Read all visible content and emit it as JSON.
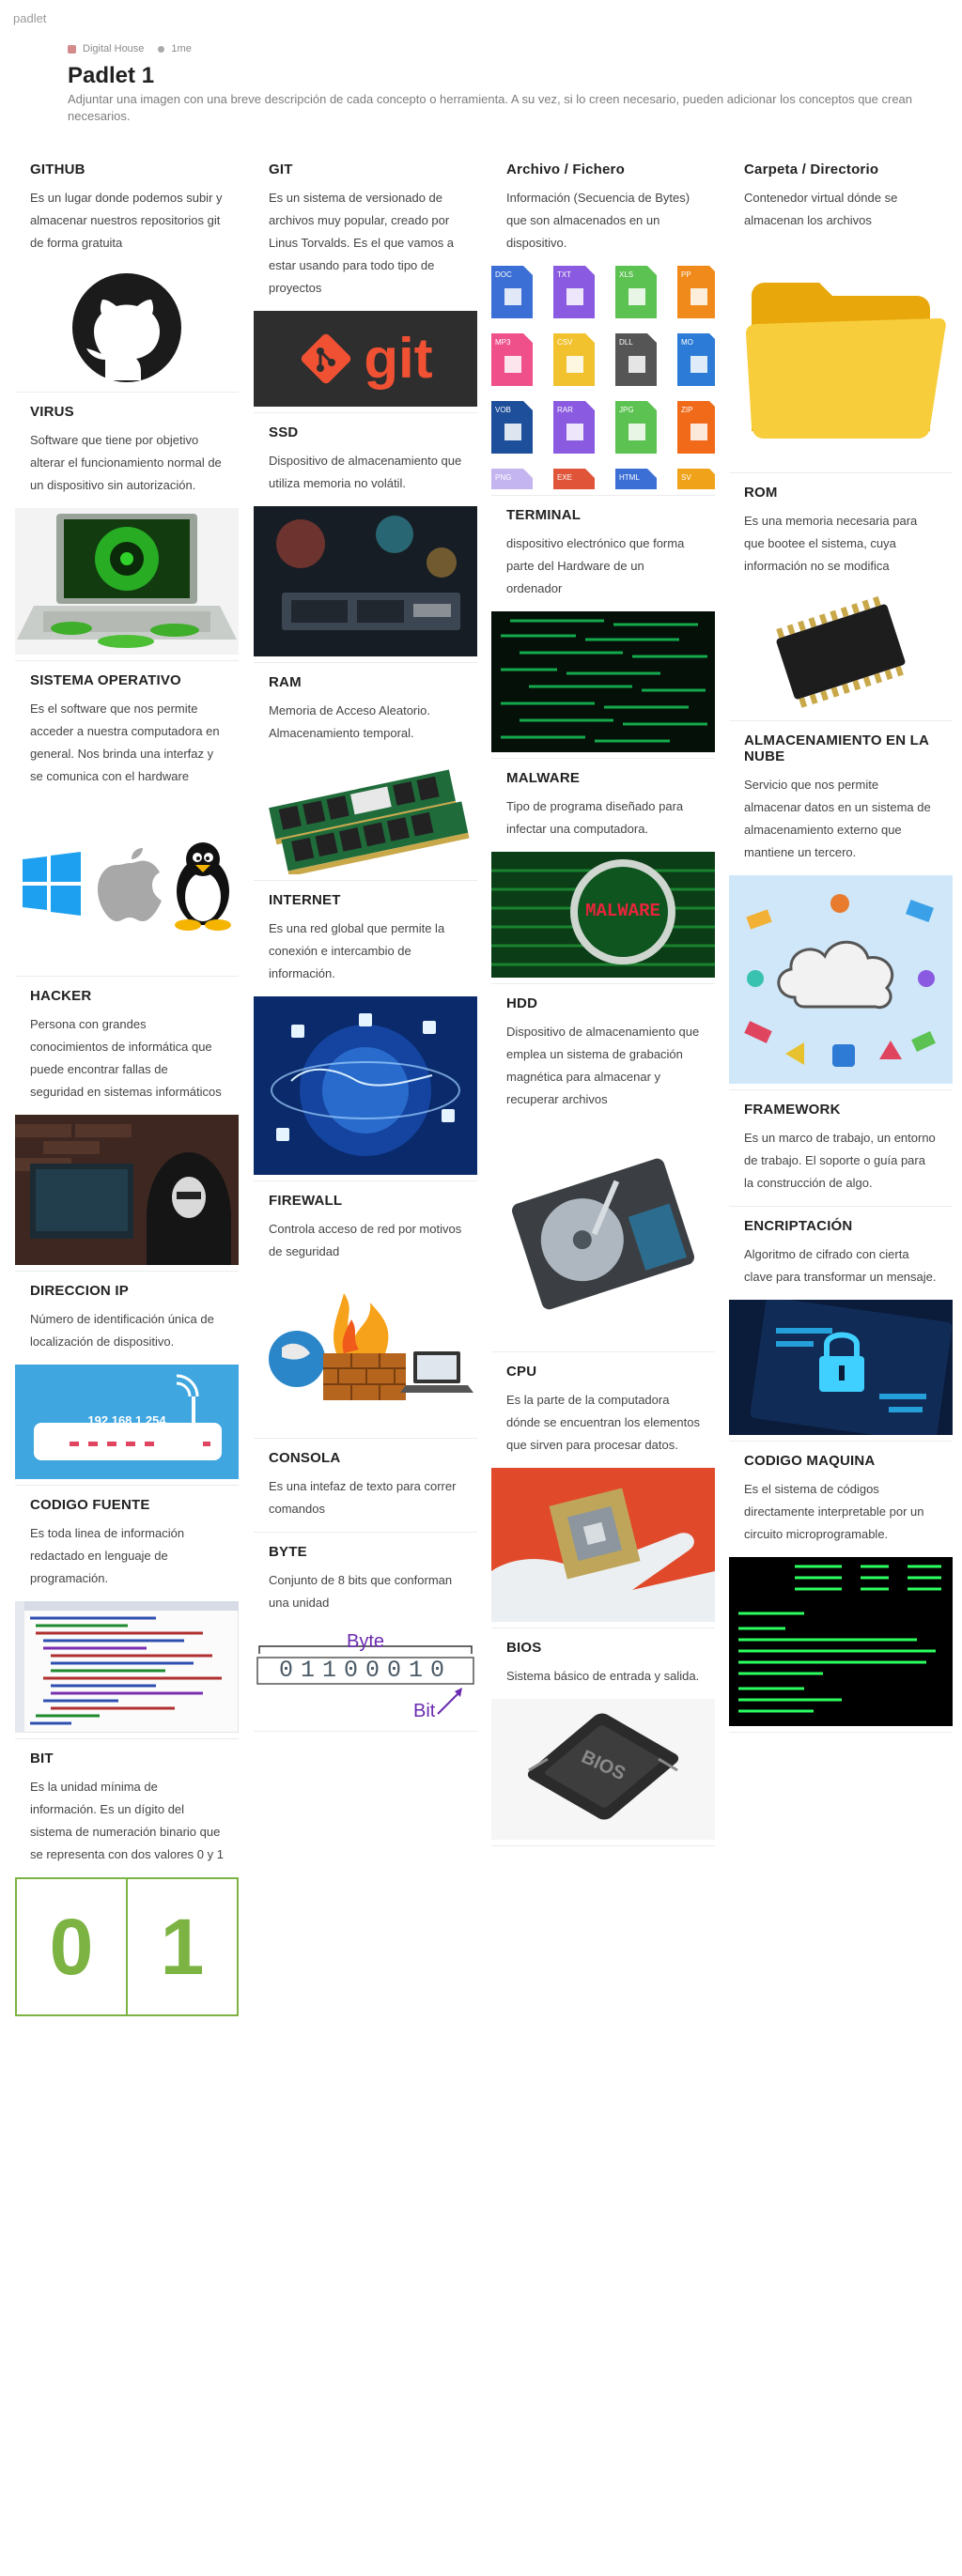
{
  "app_name": "padlet",
  "header": {
    "owner": "Digital House",
    "time": "1me",
    "title": "Padlet 1",
    "description": "Adjuntar una imagen con una breve descripción de cada concepto o herramienta. A su vez, si lo creen necesario, pueden adicionar los conceptos que crean necesarios."
  },
  "cards": {
    "github": {
      "title": "GITHUB",
      "text": "Es un lugar donde podemos subir y almacenar nuestros repositorios git de forma gratuita"
    },
    "virus": {
      "title": "VIRUS",
      "text": "Software que tiene por objetivo alterar el funcionamiento normal de un dispositivo sin autorización."
    },
    "so": {
      "title": "SISTEMA OPERATIVO",
      "text": "Es el software que nos permite acceder a nuestra computadora en general. Nos brinda una interfaz y se comunica con el hardware"
    },
    "hacker": {
      "title": "HACKER",
      "text": "Persona con grandes conocimientos de informática que puede encontrar fallas de seguridad en sistemas informáticos"
    },
    "ip": {
      "title": "DIRECCION IP",
      "text": "Número de identificación única de localización de dispositivo.",
      "img_text": "192.168.1.254"
    },
    "fuente": {
      "title": "CODIGO FUENTE",
      "text": "Es toda linea de información redactado en lenguaje de programación."
    },
    "bit": {
      "title": "BIT",
      "text": "Es la unidad mínima de información. Es un dígito del sistema de numeración binario que se representa con dos valores 0 y 1",
      "img_left": "0",
      "img_right": "1"
    },
    "git": {
      "title": "GIT",
      "text": "Es un sistema de versionado de archivos muy popular, creado por Linus Torvalds. Es el que vamos a estar usando para todo tipo de proyectos",
      "img_text": "git"
    },
    "ssd": {
      "title": "SSD",
      "text": "Dispositivo de almacenamiento que utiliza memoria no volátil."
    },
    "ram": {
      "title": "RAM",
      "text": "Memoria de Acceso Aleatorio. Almacenamiento temporal."
    },
    "internet": {
      "title": "INTERNET",
      "text": "Es una red global que permite la conexión e intercambio de información."
    },
    "firewall": {
      "title": "FIREWALL",
      "text": "Controla acceso de red por motivos de seguridad"
    },
    "consola": {
      "title": "CONSOLA",
      "text": "Es una intefaz de texto para correr comandos"
    },
    "byte": {
      "title": "BYTE",
      "text": "Conjunto de 8 bits que conforman una unidad",
      "img_label_top": "Byte",
      "img_label_bottom": "Bit",
      "img_bits": "01100010"
    },
    "archivo": {
      "title": "Archivo / Fichero",
      "text": "Información (Secuencia de Bytes) que son almacenados en un dispositivo.",
      "file_types": [
        "DOC",
        "TXT",
        "XLS",
        "PP",
        "MP3",
        "CSV",
        "DLL",
        "MO",
        "VOB",
        "RAR",
        "JPG",
        "ZIP",
        "PNG",
        "EXE",
        "HTML",
        "SV"
      ]
    },
    "terminal": {
      "title": "TERMINAL",
      "text": "dispositivo electrónico que forma parte del Hardware de un ordenador"
    },
    "malware": {
      "title": "MALWARE",
      "text": "Tipo de programa diseñado para infectar una computadora.",
      "img_text": "MALWARE"
    },
    "hdd": {
      "title": "HDD",
      "text": "Dispositivo de almacenamiento que emplea un sistema de grabación magnética para almacenar y recuperar archivos"
    },
    "cpu": {
      "title": "CPU",
      "text": "Es la parte de la computadora dónde se encuentran los elementos que sirven para procesar datos."
    },
    "bios": {
      "title": "BIOS",
      "text": "Sistema básico de entrada y salida.",
      "img_text": "BIOS"
    },
    "carpeta": {
      "title": "Carpeta / Directorio",
      "text": "Contenedor virtual dónde se almacenan los archivos"
    },
    "rom": {
      "title": "ROM",
      "text": "Es una memoria necesaria para que bootee el sistema, cuya información no se modifica"
    },
    "nube": {
      "title": "ALMACENAMIENTO EN LA NUBE",
      "text": "Servicio que nos permite almacenar datos en un sistema de almacenamiento externo que mantiene un tercero."
    },
    "framework": {
      "title": "FRAMEWORK",
      "text": "Es un marco de trabajo, un entorno de trabajo. El soporte o guía para la construcción de algo."
    },
    "encriptacion": {
      "title": "ENCRIPTACIÓN",
      "text": "Algoritmo de cifrado con cierta clave para transformar un mensaje."
    },
    "maquina": {
      "title": "CODIGO MAQUINA",
      "text": "Es el sistema de códigos directamente interpretable por un circuito microprogramable."
    }
  }
}
